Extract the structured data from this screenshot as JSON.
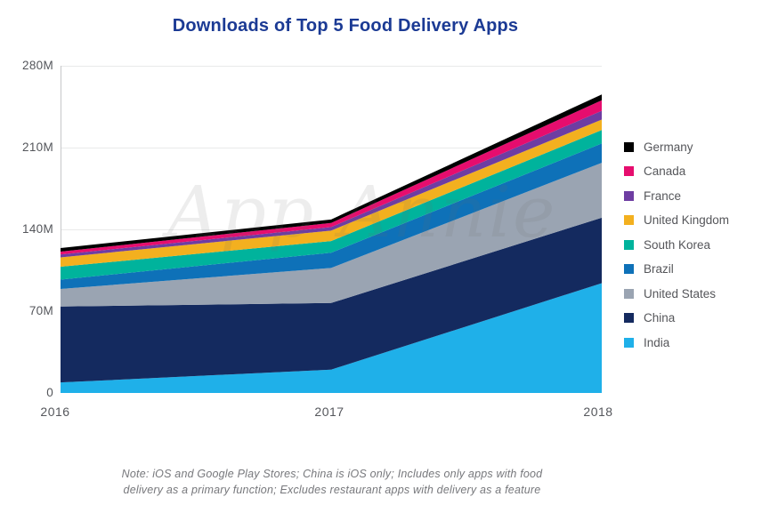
{
  "title": "Downloads of Top 5 Food Delivery Apps",
  "title_color": "#1b3a94",
  "watermark": {
    "text": "App Annie"
  },
  "note": {
    "line1": "Note: iOS and Google Play Stores; China is iOS only; Includes only apps with food",
    "line2": "delivery as a primary function; Excludes restaurant apps with delivery as a feature"
  },
  "axis": {
    "label_color": "#54565b",
    "gridline_color": "#e9eaea",
    "axisline_color": "#c6c7c9"
  },
  "chart_data": {
    "type": "area",
    "stacked": true,
    "title": "Downloads of Top 5 Food Delivery Apps",
    "unit": "downloads (millions)",
    "x": [
      2016,
      2017,
      2018
    ],
    "x_labels": [
      "2016",
      "2017",
      "2018"
    ],
    "ylim": [
      0,
      280
    ],
    "y_ticks": [
      {
        "label": "280M",
        "value": 280
      },
      {
        "label": "210M",
        "value": 210
      },
      {
        "label": "140M",
        "value": 140
      },
      {
        "label": "70M",
        "value": 70
      },
      {
        "label": "0",
        "value": 0
      }
    ],
    "grid": true,
    "legend_position": "right",
    "series_note": "listed in legend order, top of stack first; values in millions",
    "series": [
      {
        "name": "Germany",
        "color": "#000000",
        "values": [
          3,
          3,
          5
        ]
      },
      {
        "name": "Canada",
        "color": "#e60d6e",
        "values": [
          2.5,
          3.5,
          9
        ]
      },
      {
        "name": "France",
        "color": "#6e3da2",
        "values": [
          2.5,
          3,
          7.5
        ]
      },
      {
        "name": "United Kingdom",
        "color": "#f3b01f",
        "values": [
          8,
          9,
          9
        ]
      },
      {
        "name": "South Korea",
        "color": "#00b39c",
        "values": [
          11,
          10,
          11.5
        ]
      },
      {
        "name": "Brazil",
        "color": "#0e71b8",
        "values": [
          8,
          13,
          16.5
        ]
      },
      {
        "name": "United States",
        "color": "#9aa4b2",
        "values": [
          15,
          30,
          47
        ]
      },
      {
        "name": "China",
        "color": "#142a5f",
        "values": [
          65,
          57,
          56
        ]
      },
      {
        "name": "India",
        "color": "#1fb0e9",
        "values": [
          9,
          20,
          94
        ]
      }
    ],
    "totals": [
      124,
      148.5,
      255.5
    ]
  }
}
